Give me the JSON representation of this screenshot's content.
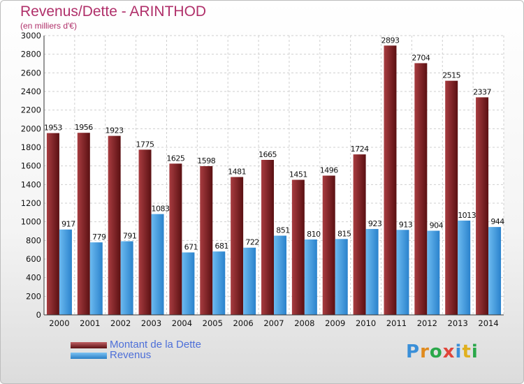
{
  "chart_data": {
    "type": "bar",
    "title": "Revenus/Dette - ARINTHOD",
    "subtitle": "(en milliers d'€)",
    "categories": [
      "2000",
      "2001",
      "2002",
      "2003",
      "2004",
      "2005",
      "2006",
      "2007",
      "2008",
      "2009",
      "2010",
      "2011",
      "2012",
      "2013",
      "2014"
    ],
    "series": [
      {
        "name": "Montant de la Dette",
        "values": [
          1953,
          1956,
          1923,
          1775,
          1625,
          1598,
          1481,
          1665,
          1451,
          1496,
          1724,
          2893,
          2704,
          2515,
          2337
        ],
        "color": "#8c2a2e"
      },
      {
        "name": "Revenus",
        "values": [
          917,
          779,
          791,
          1083,
          671,
          681,
          722,
          851,
          810,
          815,
          923,
          913,
          904,
          1013,
          944
        ],
        "color": "#3f9ae0"
      }
    ],
    "ylim": [
      0,
      3000
    ],
    "yticks": [
      0,
      200,
      400,
      600,
      800,
      1000,
      1200,
      1400,
      1600,
      1800,
      2000,
      2200,
      2400,
      2600,
      2800,
      3000
    ],
    "grid": true,
    "legend": "bottom-left"
  },
  "logo": {
    "letters": [
      {
        "ch": "P",
        "color": "#3a8fd8"
      },
      {
        "ch": "r",
        "color": "#e08a1e"
      },
      {
        "ch": "o",
        "color": "#2aa84a"
      },
      {
        "ch": "x",
        "color": "#e0453a"
      },
      {
        "ch": "i",
        "color": "#3a8fd8"
      },
      {
        "ch": "t",
        "color": "#e0b01e"
      },
      {
        "ch": "i",
        "color": "#2aa84a"
      }
    ]
  }
}
